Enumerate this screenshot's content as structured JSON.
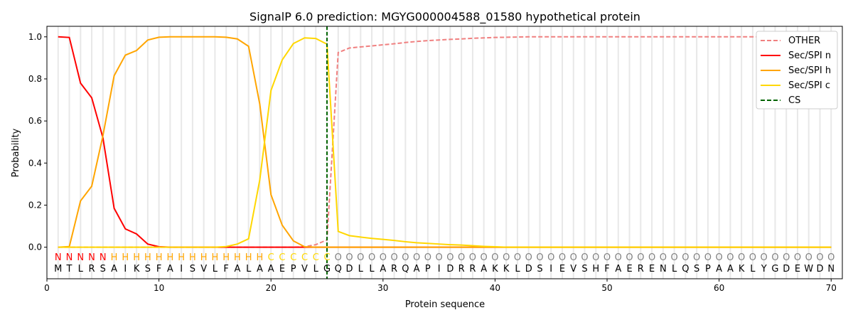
{
  "chart_data": {
    "type": "line",
    "title": "SignalP 6.0 prediction: MGYG000004588_01580 hypothetical protein",
    "xlabel": "Protein sequence",
    "ylabel": "Probability",
    "xlim": [
      0,
      71
    ],
    "ylim": [
      -0.15,
      1.05
    ],
    "xticks": [
      0,
      10,
      20,
      30,
      40,
      50,
      60,
      70
    ],
    "yticks": [
      "0.0",
      "0.2",
      "0.4",
      "0.6",
      "0.8",
      "1.0"
    ],
    "legend_position": "top-right",
    "sequence": [
      "M",
      "T",
      "L",
      "R",
      "S",
      "A",
      "I",
      "K",
      "S",
      "F",
      "A",
      "I",
      "S",
      "V",
      "L",
      "F",
      "A",
      "L",
      "A",
      "A",
      "E",
      "P",
      "V",
      "L",
      "G",
      "Q",
      "D",
      "L",
      "L",
      "A",
      "R",
      "Q",
      "A",
      "P",
      "I",
      "D",
      "R",
      "R",
      "A",
      "K",
      "K",
      "L",
      "D",
      "S",
      "I",
      "E",
      "V",
      "S",
      "H",
      "F",
      "A",
      "E",
      "R",
      "E",
      "N",
      "L",
      "Q",
      "S",
      "P",
      "A",
      "A",
      "K",
      "L",
      "Y",
      "G",
      "D",
      "E",
      "W",
      "D",
      "N"
    ],
    "labels": [
      "N",
      "N",
      "N",
      "N",
      "N",
      "H",
      "H",
      "H",
      "H",
      "H",
      "H",
      "H",
      "H",
      "H",
      "H",
      "H",
      "H",
      "H",
      "H",
      "C",
      "C",
      "C",
      "C",
      "C",
      "C",
      "O",
      "O",
      "O",
      "O",
      "O",
      "O",
      "O",
      "O",
      "O",
      "O",
      "O",
      "O",
      "O",
      "O",
      "O",
      "O",
      "O",
      "O",
      "O",
      "O",
      "O",
      "O",
      "O",
      "O",
      "O",
      "O",
      "O",
      "O",
      "O",
      "O",
      "O",
      "O",
      "O",
      "O",
      "O",
      "O",
      "O",
      "O",
      "O",
      "O",
      "O",
      "O",
      "O",
      "O",
      "O"
    ],
    "label_colors": {
      "N": "#ff0000",
      "H": "#ffa500",
      "C": "#ffd700",
      "O": "#808080"
    },
    "cleavage_site": 25,
    "series": [
      {
        "name": "OTHER",
        "color": "#f08080",
        "dash": true,
        "values": [
          0,
          0,
          0,
          0,
          0,
          0,
          0,
          0,
          0,
          0,
          0,
          0,
          0,
          0,
          0,
          0,
          0,
          0,
          0,
          0,
          0,
          0,
          0.002,
          0.012,
          0.035,
          0.925,
          0.947,
          0.952,
          0.957,
          0.962,
          0.967,
          0.973,
          0.978,
          0.982,
          0.985,
          0.988,
          0.99,
          0.993,
          0.995,
          0.997,
          0.998,
          0.999,
          1,
          1,
          1,
          1,
          1,
          1,
          1,
          1,
          1,
          1,
          1,
          1,
          1,
          1,
          1,
          1,
          1,
          1,
          1,
          1,
          1,
          1,
          1,
          1,
          1,
          1,
          1,
          1
        ]
      },
      {
        "name": "Sec/SPI n",
        "color": "#ff0000",
        "dash": false,
        "values": [
          1.0,
          0.997,
          0.78,
          0.71,
          0.52,
          0.185,
          0.087,
          0.063,
          0.015,
          0.002,
          0,
          0,
          0,
          0,
          0,
          0,
          0,
          0,
          0,
          0,
          0,
          0,
          0,
          0,
          0,
          0,
          0,
          0,
          0,
          0,
          0,
          0,
          0,
          0,
          0,
          0,
          0,
          0,
          0,
          0,
          0,
          0,
          0,
          0,
          0,
          0,
          0,
          0,
          0,
          0,
          0,
          0,
          0,
          0,
          0,
          0,
          0,
          0,
          0,
          0,
          0,
          0,
          0,
          0,
          0,
          0,
          0,
          0,
          0,
          0
        ]
      },
      {
        "name": "Sec/SPI h",
        "color": "#ffa500",
        "dash": false,
        "values": [
          0,
          0.003,
          0.22,
          0.29,
          0.53,
          0.815,
          0.913,
          0.935,
          0.985,
          0.998,
          1,
          1,
          1,
          1,
          1,
          0.998,
          0.99,
          0.955,
          0.68,
          0.25,
          0.105,
          0.03,
          0.002,
          0,
          0,
          0,
          0,
          0,
          0,
          0,
          0,
          0,
          0,
          0,
          0,
          0,
          0,
          0,
          0,
          0,
          0,
          0,
          0,
          0,
          0,
          0,
          0,
          0,
          0,
          0,
          0,
          0,
          0,
          0,
          0,
          0,
          0,
          0,
          0,
          0,
          0,
          0,
          0,
          0,
          0,
          0,
          0,
          0,
          0,
          0
        ]
      },
      {
        "name": "Sec/SPI c",
        "color": "#ffd700",
        "dash": false,
        "values": [
          0,
          0,
          0,
          0,
          0,
          0,
          0,
          0,
          0,
          0,
          0,
          0,
          0,
          0,
          0,
          0.003,
          0.015,
          0.04,
          0.32,
          0.745,
          0.89,
          0.968,
          0.995,
          0.992,
          0.965,
          0.075,
          0.055,
          0.048,
          0.042,
          0.037,
          0.032,
          0.026,
          0.021,
          0.018,
          0.015,
          0.012,
          0.01,
          0.007,
          0.004,
          0.002,
          0,
          0,
          0,
          0,
          0,
          0,
          0,
          0,
          0,
          0,
          0,
          0,
          0,
          0,
          0,
          0,
          0,
          0,
          0,
          0,
          0,
          0,
          0,
          0,
          0,
          0,
          0,
          0,
          0,
          0
        ]
      }
    ],
    "cs_legend": "CS",
    "cs_color": "#006400"
  }
}
